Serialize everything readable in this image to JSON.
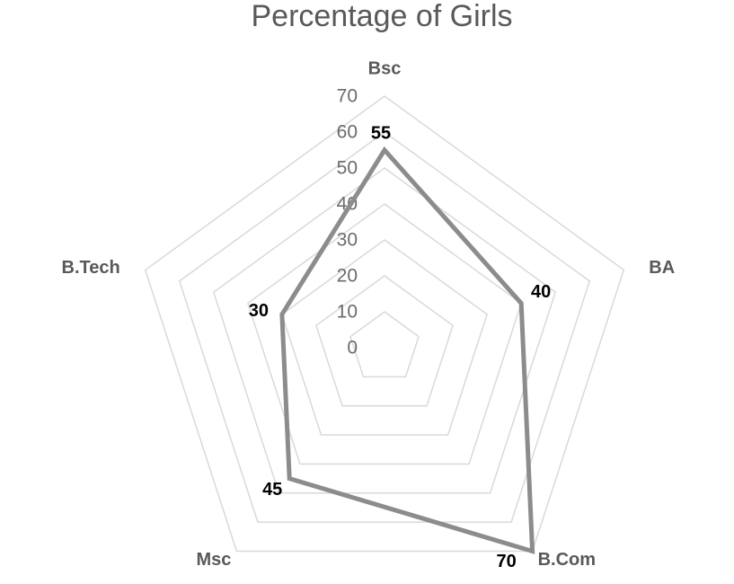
{
  "chart_data": {
    "type": "radar",
    "title": "Percentage of Girls",
    "categories": [
      "Bsc",
      "BA",
      "B.Com",
      "Msc",
      "B.Tech"
    ],
    "series": [
      {
        "name": "Percentage of Girls",
        "color": "#8c8c8c",
        "values": [
          55,
          40,
          70,
          45,
          30
        ]
      }
    ],
    "ylim": [
      0,
      70
    ],
    "yticks": [
      0,
      10,
      20,
      30,
      40,
      50,
      60,
      70
    ],
    "grid": true
  }
}
